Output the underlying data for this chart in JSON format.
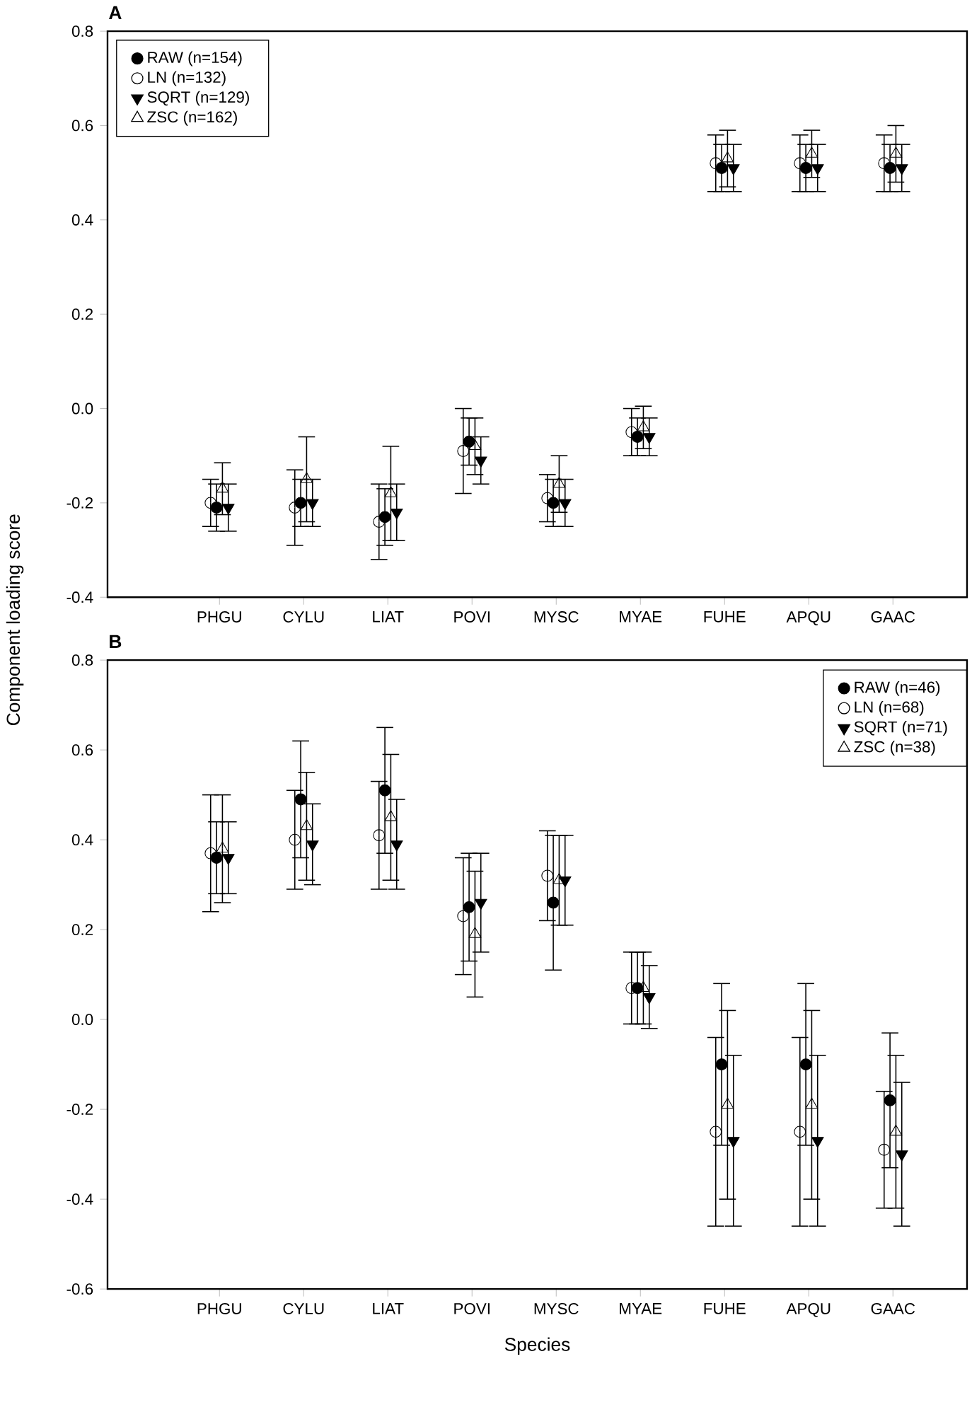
{
  "chart_data": [
    {
      "type": "scatter",
      "title": "A",
      "ylabel": "Component loading score",
      "categories": [
        "PHGU",
        "CYLU",
        "LIAT",
        "POVI",
        "MYSC",
        "MYAE",
        "FUHE",
        "APQU",
        "GAAC"
      ],
      "ylim": [
        -0.4,
        0.8
      ],
      "yticks": [
        {
          "value": -0.4,
          "label": "-0.4"
        },
        {
          "value": -0.2,
          "label": "-0.2"
        },
        {
          "value": 0,
          "label": "0.0"
        },
        0.2,
        0.4,
        0.6,
        0.8
      ],
      "legend": "top left",
      "grid": false,
      "series": [
        {
          "name": "RAW (n=154)",
          "color": "#000000",
          "marker": "circle",
          "values": [
            -0.21,
            -0.2,
            -0.23,
            -0.07,
            -0.2,
            -0.06,
            0.51,
            0.51,
            0.51
          ],
          "errors": [
            0.05,
            0.05,
            0.06,
            0.05,
            0.05,
            0.04,
            0.05,
            0.05,
            0.05
          ]
        },
        {
          "name": "LN (n=132)",
          "color": "#000000",
          "marker": "circle_open",
          "values": [
            -0.2,
            -0.21,
            -0.24,
            -0.09,
            -0.19,
            -0.05,
            0.52,
            0.52,
            0.52
          ],
          "errors": [
            0.05,
            0.08,
            0.08,
            0.09,
            0.05,
            0.05,
            0.06,
            0.06,
            0.06
          ]
        },
        {
          "name": "SQRT (n=129)",
          "color": "#000000",
          "marker": "triangle",
          "values": [
            -0.21,
            -0.2,
            -0.22,
            -0.11,
            -0.2,
            -0.06,
            0.51,
            0.51,
            0.51
          ],
          "errors": [
            0.05,
            0.05,
            0.06,
            0.05,
            0.05,
            0.04,
            0.05,
            0.05,
            0.05
          ]
        },
        {
          "name": "ZSC (n=162)",
          "color": "#000000",
          "marker": "triangle_open",
          "values": [
            -0.17,
            -0.15,
            -0.18,
            -0.08,
            -0.16,
            -0.04,
            0.53,
            0.54,
            0.54
          ],
          "errors": [
            0.055,
            0.09,
            0.1,
            0.06,
            0.06,
            0.045,
            0.06,
            0.05,
            0.06
          ]
        }
      ]
    },
    {
      "type": "scatter",
      "title": "B",
      "xlabel": "Species",
      "categories": [
        "PHGU",
        "CYLU",
        "LIAT",
        "POVI",
        "MYSC",
        "MYAE",
        "FUHE",
        "APQU",
        "GAAC"
      ],
      "ylim": [
        -0.6,
        0.8
      ],
      "yticks": [
        {
          "value": -0.6,
          "label": "-0.6"
        },
        {
          "value": -0.4,
          "label": "-0.4"
        },
        {
          "value": -0.2,
          "label": "-0.2"
        },
        {
          "value": 0,
          "label": "0.0"
        },
        0.2,
        0.4,
        0.6,
        0.8
      ],
      "legend": "top right",
      "grid": false,
      "series": [
        {
          "name": "RAW (n=46)",
          "color": "#000000",
          "marker": "circle",
          "values": [
            0.36,
            0.49,
            0.51,
            0.25,
            0.26,
            0.07,
            -0.1,
            -0.1,
            -0.18
          ],
          "errors": [
            0.08,
            0.13,
            0.14,
            0.12,
            0.15,
            0.08,
            0.18,
            0.18,
            0.15
          ]
        },
        {
          "name": "LN (n=68)",
          "color": "#000000",
          "marker": "circle_open",
          "values": [
            0.37,
            0.4,
            0.41,
            0.23,
            0.32,
            0.07,
            -0.25,
            -0.25,
            -0.29
          ],
          "errors": [
            0.13,
            0.11,
            0.12,
            0.13,
            0.1,
            0.08,
            0.21,
            0.21,
            0.13
          ]
        },
        {
          "name": "SQRT (n=71)",
          "color": "#000000",
          "marker": "triangle",
          "values": [
            0.36,
            0.39,
            0.39,
            0.26,
            0.31,
            0.05,
            -0.27,
            -0.27,
            -0.3
          ],
          "errors": [
            0.08,
            0.09,
            0.1,
            0.11,
            0.1,
            0.07,
            0.19,
            0.19,
            0.16
          ]
        },
        {
          "name": "ZSC (n=38)",
          "color": "#000000",
          "marker": "triangle_open",
          "values": [
            0.38,
            0.43,
            0.45,
            0.19,
            0.31,
            0.07,
            -0.19,
            -0.19,
            -0.25
          ],
          "errors": [
            0.12,
            0.12,
            0.14,
            0.14,
            0.1,
            0.08,
            0.21,
            0.21,
            0.17
          ]
        }
      ]
    }
  ]
}
